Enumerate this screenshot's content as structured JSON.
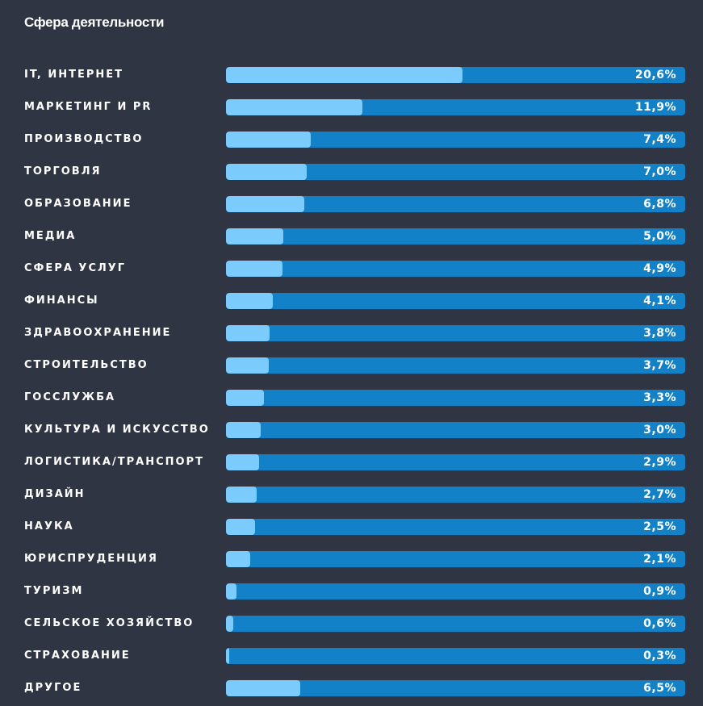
{
  "colors": {
    "background": "#2f3542",
    "track": "#1281c7",
    "fill": "#7ccbfd",
    "text": "#ffffff"
  },
  "chart_data": {
    "type": "bar",
    "orientation": "horizontal",
    "title": "Сфера деятельности",
    "xlim": [
      0,
      40
    ],
    "grid": false,
    "legend": "none",
    "categories": [
      "IT, ИНТЕРНЕТ",
      "МАРКЕТИНГ И PR",
      "ПРОИЗВОДСТВО",
      "ТОРГОВЛЯ",
      "ОБРАЗОВАНИЕ",
      "МЕДИА",
      "СФЕРА УСЛУГ",
      "ФИНАНСЫ",
      "ЗДРАВООХРАНЕНИЕ",
      "СТРОИТЕЛЬСТВО",
      "ГОССЛУЖБА",
      "КУЛЬТУРА И ИСКУССТВО",
      "ЛОГИСТИКА/ТРАНСПОРТ",
      "ДИЗАЙН",
      "НАУКА",
      "ЮРИСПРУДЕНЦИЯ",
      "ТУРИЗМ",
      "СЕЛЬСКОЕ ХОЗЯЙСТВО",
      "СТРАХОВАНИЕ",
      "ДРУГОЕ"
    ],
    "values": [
      20.6,
      11.9,
      7.4,
      7.0,
      6.8,
      5.0,
      4.9,
      4.1,
      3.8,
      3.7,
      3.3,
      3.0,
      2.9,
      2.7,
      2.5,
      2.1,
      0.9,
      0.6,
      0.3,
      6.5
    ],
    "value_labels": [
      "20,6%",
      "11,9%",
      "7,4%",
      "7,0%",
      "6,8%",
      "5,0%",
      "4,9%",
      "4,1%",
      "3,8%",
      "3,7%",
      "3,3%",
      "3,0%",
      "2,9%",
      "2,7%",
      "2,5%",
      "2,1%",
      "0,9%",
      "0,6%",
      "0,3%",
      "6,5%"
    ]
  }
}
